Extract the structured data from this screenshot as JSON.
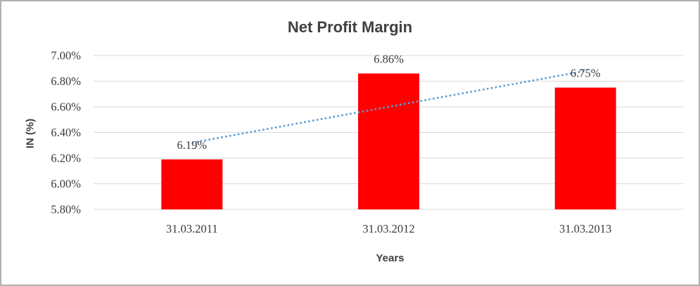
{
  "chart_data": {
    "type": "bar",
    "title": "Net Profit Margin",
    "xlabel": "Years",
    "ylabel": "IN (%)",
    "categories": [
      "31.03.2011",
      "31.03.2012",
      "31.03.2013"
    ],
    "values": [
      6.19,
      6.86,
      6.75
    ],
    "data_labels": [
      "6.19%",
      "6.86%",
      "6.75%"
    ],
    "ylim": [
      5.8,
      7.0
    ],
    "y_ticks": {
      "values": [
        7.0,
        6.8,
        6.6,
        6.4,
        6.2,
        6.0,
        5.8
      ],
      "labels": [
        "7.00%",
        "6.80%",
        "6.60%",
        "6.40%",
        "6.20%",
        "6.00%",
        "5.80%"
      ]
    },
    "grid": true,
    "legend": "none",
    "bar_color": "#ff0000",
    "trendline": {
      "type": "linear",
      "style": "dotted",
      "color": "#5b9bd5",
      "start_value": 6.32,
      "end_value": 6.88
    },
    "colors": {
      "gridline": "#d9d9d9",
      "tick_text": "#3a3a3a",
      "title_text": "#404040",
      "frame_border": "#b0b0b0",
      "background": "#ffffff"
    }
  }
}
